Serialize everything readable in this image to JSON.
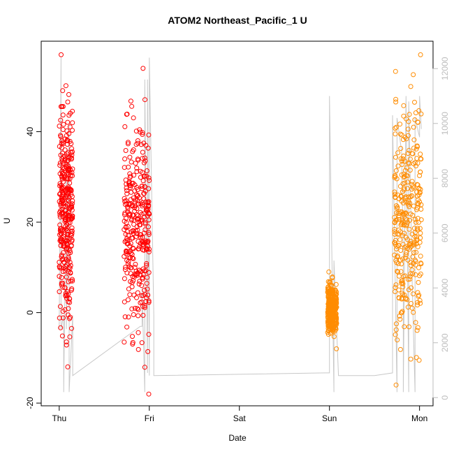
{
  "chart_data": {
    "type": "scatter",
    "title": "ATOM2 Northeast_Pacific_1 U",
    "xlabel": "Date",
    "ylabel": "U",
    "x_ticks": [
      "Thu",
      "Fri",
      "Sat",
      "Sun",
      "Mon"
    ],
    "x_range_days": [
      -0.2,
      4.15
    ],
    "ylim": [
      -20.6,
      60
    ],
    "y_ticks": [
      -20,
      0,
      20,
      40
    ],
    "y2lim": [
      -300,
      13000
    ],
    "y2_ticks": [
      0,
      2000,
      4000,
      6000,
      8000,
      10000,
      12000
    ],
    "colors": {
      "series_a": "#ff0000",
      "series_b": "#ff8c00",
      "line": "#c8c8c8"
    },
    "series": [
      {
        "color": "#ff0000",
        "segments": [
          {
            "x_start": 0.0,
            "x_end": 0.15,
            "y_min": -12,
            "y_max": 57
          },
          {
            "x_start": 0.72,
            "x_end": 1.0,
            "y_min": -18,
            "y_max": 54
          }
        ]
      },
      {
        "color": "#ff8c00",
        "segments": [
          {
            "x_start": 2.98,
            "x_end": 3.08,
            "y_min": -8,
            "y_max": 9
          },
          {
            "x_start": 3.72,
            "x_end": 4.02,
            "y_min": -16,
            "y_max": 57
          }
        ]
      }
    ],
    "line_series": {
      "axis": "right",
      "x": [
        0.0,
        0.02,
        0.02,
        0.05,
        0.05,
        0.08,
        0.08,
        0.11,
        0.11,
        0.15,
        0.15,
        0.9,
        0.92,
        0.92,
        0.95,
        0.95,
        0.98,
        0.98,
        1.0,
        1.0,
        1.05,
        1.05,
        1.05,
        2.95,
        3.0,
        3.0,
        3.05,
        3.05,
        3.1,
        3.5,
        3.7,
        3.7,
        3.75,
        3.75,
        3.8,
        3.82,
        3.82,
        3.85,
        3.88,
        3.88,
        3.92,
        3.95,
        3.95,
        4.0,
        4.0,
        4.02
      ],
      "y": [
        2500,
        12400,
        2500,
        3000,
        200,
        9000,
        2500,
        10000,
        200,
        3000,
        800,
        2600,
        2600,
        4000,
        200,
        11600,
        900,
        11600,
        800,
        12400,
        3000,
        800,
        800,
        900,
        900,
        11000,
        200,
        5000,
        800,
        800,
        900,
        10300,
        200,
        10200,
        9000,
        5000,
        200,
        11000,
        200,
        10800,
        4000,
        200,
        10200,
        9500,
        11000,
        9800
      ]
    }
  }
}
